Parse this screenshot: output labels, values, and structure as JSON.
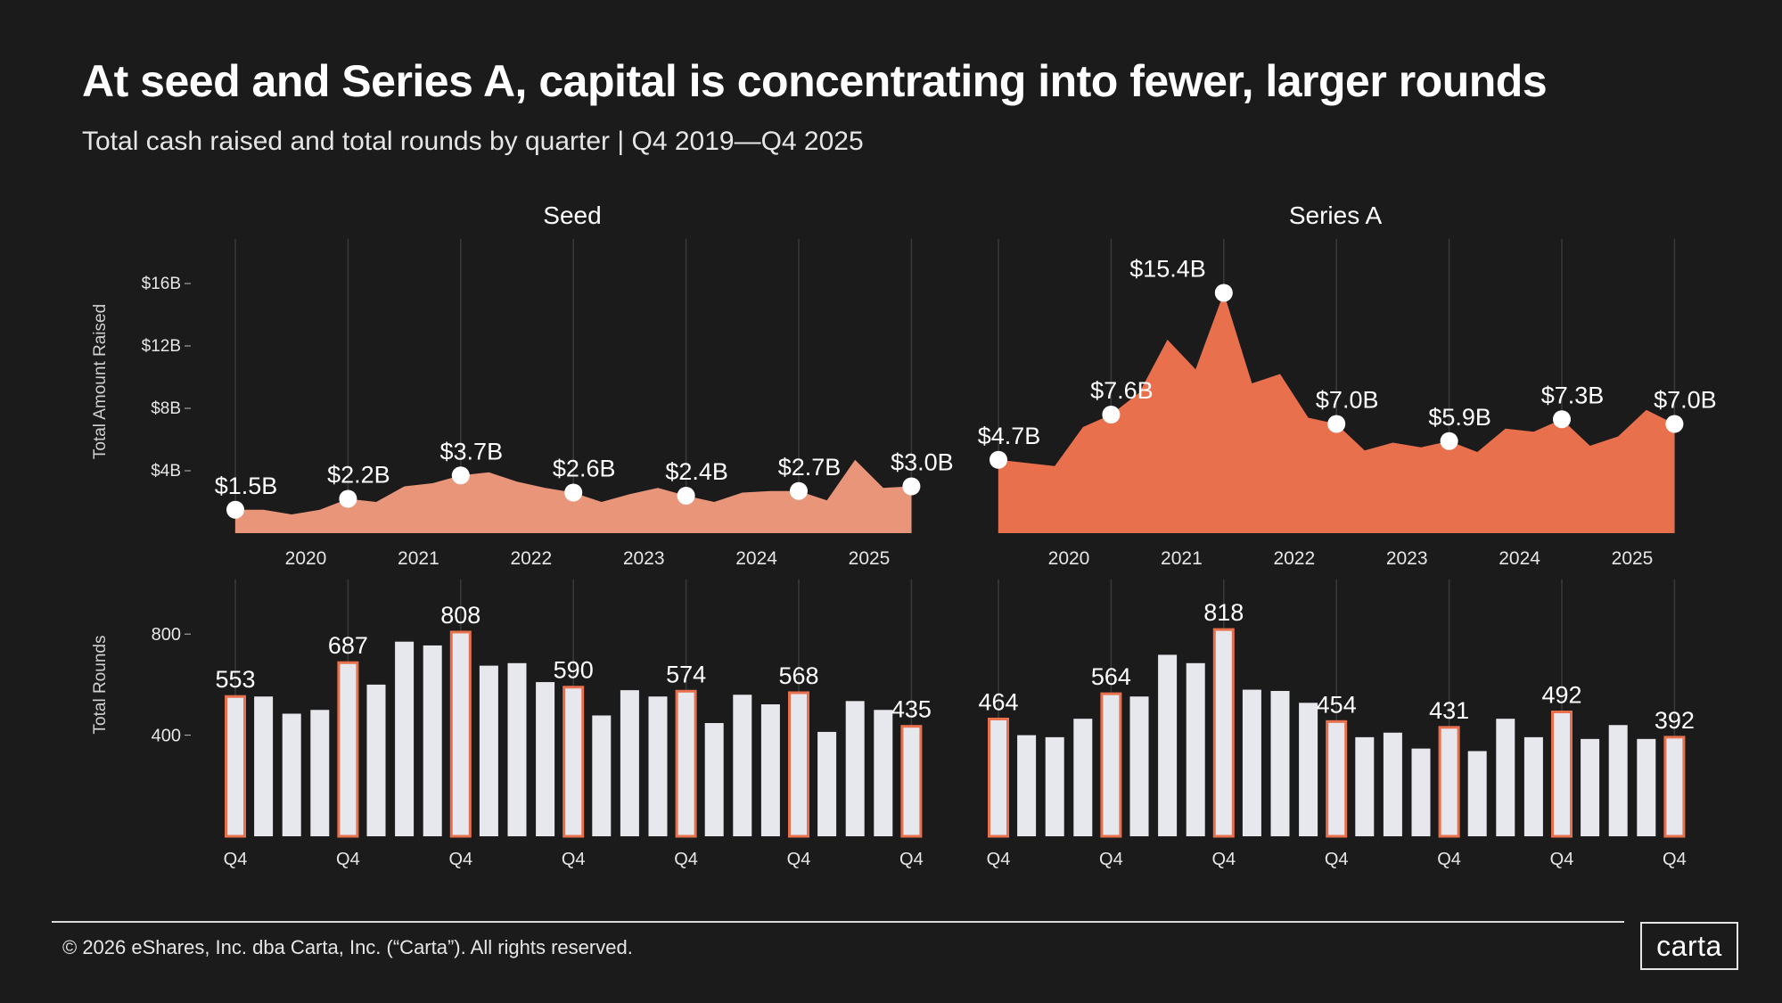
{
  "header": {
    "title": "At seed and Series A, capital is concentrating into fewer, larger rounds",
    "subtitle": "Total cash raised and total rounds by quarter | Q4 2019—Q4 2025"
  },
  "footer": {
    "copyright": "© 2026 eShares, Inc. dba Carta, Inc. (“Carta”). All rights reserved.",
    "logo": "carta"
  },
  "colors": {
    "background": "#1b1b1b",
    "seed_area": "#e8957a",
    "seriesa_area": "#e8704d",
    "bar_fill": "#e6e8ee",
    "bar_highlight_stroke": "#e8704d",
    "gridline": "#3a3a3a"
  },
  "chart_data": [
    {
      "type": "area",
      "panel": "seed",
      "title": "Seed",
      "ylabel": "Total Amount Raised",
      "y_ticks": [
        "$4B",
        "$8B",
        "$12B",
        "$16B"
      ],
      "y_tick_values": [
        4,
        8,
        12,
        16
      ],
      "ylim": [
        0,
        18
      ],
      "x_tick_labels": [
        "2020",
        "2021",
        "2022",
        "2023",
        "2024",
        "2025"
      ],
      "x": [
        "Q4 2019",
        "Q1 2020",
        "Q2 2020",
        "Q3 2020",
        "Q4 2020",
        "Q1 2021",
        "Q2 2021",
        "Q3 2021",
        "Q4 2021",
        "Q1 2022",
        "Q2 2022",
        "Q3 2022",
        "Q4 2022",
        "Q1 2023",
        "Q2 2023",
        "Q3 2023",
        "Q4 2023",
        "Q1 2024",
        "Q2 2024",
        "Q3 2024",
        "Q4 2024",
        "Q1 2025",
        "Q2 2025",
        "Q3 2025",
        "Q4 2025"
      ],
      "values": [
        1.5,
        1.5,
        1.2,
        1.5,
        2.2,
        2.0,
        3.0,
        3.2,
        3.7,
        3.9,
        3.3,
        2.9,
        2.6,
        2.0,
        2.5,
        2.9,
        2.4,
        2.0,
        2.6,
        2.7,
        2.7,
        2.1,
        4.7,
        2.9,
        3.0
      ],
      "annotations": [
        {
          "index": 0,
          "label": "$1.5B"
        },
        {
          "index": 4,
          "label": "$2.2B"
        },
        {
          "index": 8,
          "label": "$3.7B"
        },
        {
          "index": 12,
          "label": "$2.6B"
        },
        {
          "index": 16,
          "label": "$2.4B"
        },
        {
          "index": 20,
          "label": "$2.7B"
        },
        {
          "index": 24,
          "label": "$3.0B"
        }
      ]
    },
    {
      "type": "area",
      "panel": "seriesa",
      "title": "Series A",
      "ylabel": "Total Amount Raised",
      "ylim": [
        0,
        18
      ],
      "x_tick_labels": [
        "2020",
        "2021",
        "2022",
        "2023",
        "2024",
        "2025"
      ],
      "x": [
        "Q4 2019",
        "Q1 2020",
        "Q2 2020",
        "Q3 2020",
        "Q4 2020",
        "Q1 2021",
        "Q2 2021",
        "Q3 2021",
        "Q4 2021",
        "Q1 2022",
        "Q2 2022",
        "Q3 2022",
        "Q4 2022",
        "Q1 2023",
        "Q2 2023",
        "Q3 2023",
        "Q4 2023",
        "Q1 2024",
        "Q2 2024",
        "Q3 2024",
        "Q4 2024",
        "Q1 2025",
        "Q2 2025",
        "Q3 2025",
        "Q4 2025"
      ],
      "values": [
        4.7,
        4.5,
        4.3,
        6.8,
        7.6,
        9.0,
        12.4,
        10.5,
        15.4,
        9.6,
        10.2,
        7.4,
        7.0,
        5.3,
        5.8,
        5.5,
        5.9,
        5.2,
        6.7,
        6.5,
        7.3,
        5.6,
        6.2,
        7.9,
        7.0
      ],
      "annotations": [
        {
          "index": 0,
          "label": "$4.7B"
        },
        {
          "index": 4,
          "label": "$7.6B"
        },
        {
          "index": 8,
          "label": "$15.4B"
        },
        {
          "index": 12,
          "label": "$7.0B"
        },
        {
          "index": 16,
          "label": "$5.9B"
        },
        {
          "index": 20,
          "label": "$7.3B"
        },
        {
          "index": 24,
          "label": "$7.0B"
        }
      ]
    },
    {
      "type": "bar",
      "panel": "seed",
      "ylabel": "Total Rounds",
      "y_ticks": [
        "400",
        "800"
      ],
      "y_tick_values": [
        400,
        800
      ],
      "ylim": [
        0,
        1000
      ],
      "x_tick_labels": [
        "Q4",
        "Q4",
        "Q4",
        "Q4",
        "Q4",
        "Q4",
        "Q4"
      ],
      "values": [
        553,
        553,
        485,
        500,
        687,
        600,
        770,
        755,
        808,
        675,
        685,
        610,
        590,
        478,
        578,
        553,
        574,
        448,
        560,
        522,
        568,
        413,
        535,
        500,
        435
      ],
      "annotations": [
        {
          "index": 0,
          "label": "553"
        },
        {
          "index": 4,
          "label": "687"
        },
        {
          "index": 8,
          "label": "808"
        },
        {
          "index": 12,
          "label": "590"
        },
        {
          "index": 16,
          "label": "574"
        },
        {
          "index": 20,
          "label": "568"
        },
        {
          "index": 24,
          "label": "435"
        }
      ]
    },
    {
      "type": "bar",
      "panel": "seriesa",
      "ylabel": "Total Rounds",
      "ylim": [
        0,
        1000
      ],
      "x_tick_labels": [
        "Q4",
        "Q4",
        "Q4",
        "Q4",
        "Q4",
        "Q4",
        "Q4"
      ],
      "values": [
        464,
        400,
        392,
        465,
        564,
        553,
        718,
        685,
        818,
        580,
        575,
        528,
        454,
        392,
        410,
        347,
        431,
        337,
        465,
        392,
        492,
        385,
        440,
        385,
        392
      ],
      "annotations": [
        {
          "index": 0,
          "label": "464"
        },
        {
          "index": 4,
          "label": "564"
        },
        {
          "index": 8,
          "label": "818"
        },
        {
          "index": 12,
          "label": "454"
        },
        {
          "index": 16,
          "label": "431"
        },
        {
          "index": 20,
          "label": "492"
        },
        {
          "index": 24,
          "label": "392"
        }
      ]
    }
  ]
}
